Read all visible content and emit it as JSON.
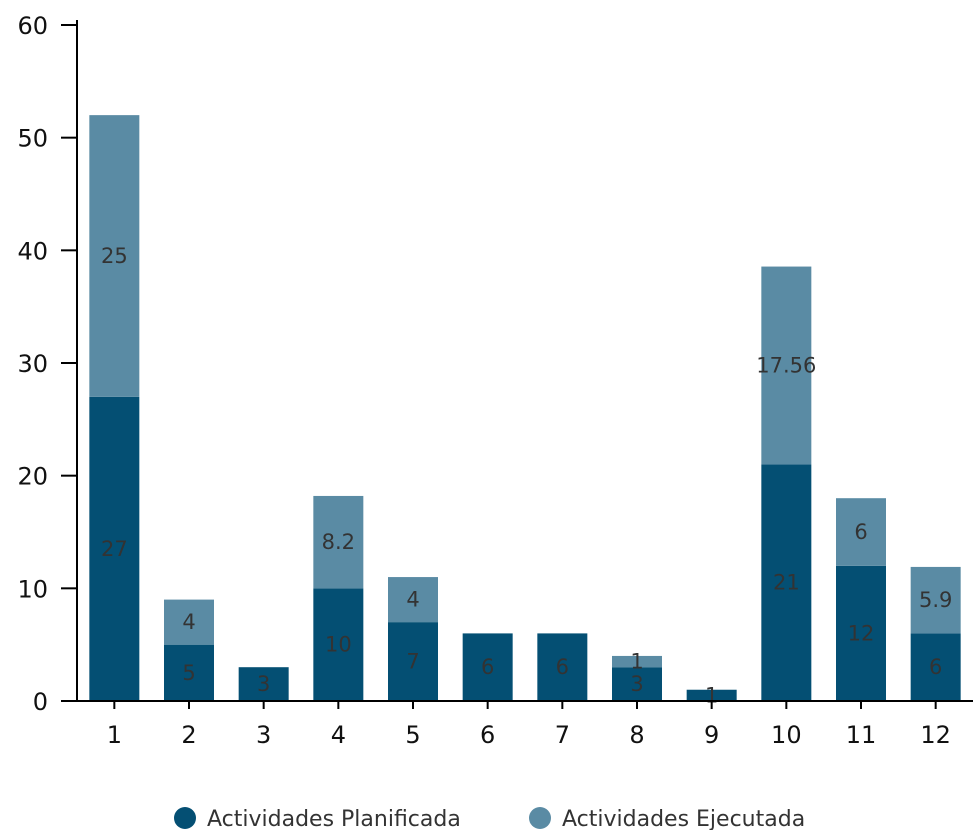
{
  "chart_data": {
    "type": "bar",
    "stacked": true,
    "categories": [
      "1",
      "2",
      "3",
      "4",
      "5",
      "6",
      "7",
      "8",
      "9",
      "10",
      "11",
      "12"
    ],
    "series": [
      {
        "name": "Actividades Planificada",
        "color": "#044F73",
        "values": [
          27,
          5,
          3,
          10,
          7,
          6,
          6,
          3,
          1,
          21,
          12,
          6
        ],
        "labels": [
          "27",
          "5",
          "3",
          "10",
          "7",
          "6",
          "6",
          "3",
          "1",
          "21",
          "12",
          "6"
        ]
      },
      {
        "name": "Actividades Ejecutada",
        "color": "#5A8BA4",
        "values": [
          25,
          4,
          0,
          8.2,
          4,
          0,
          0,
          1,
          0,
          17.56,
          6,
          5.9
        ],
        "labels": [
          "25",
          "4",
          "",
          "8.2",
          "4",
          "",
          "",
          "1",
          "",
          "17.56",
          "6",
          "5.9"
        ]
      }
    ],
    "ylim": [
      0,
      60
    ],
    "yticks": [
      0,
      10,
      20,
      30,
      40,
      50,
      60
    ],
    "grid": false,
    "legend": "bottom",
    "title": "",
    "xlabel": "",
    "ylabel": ""
  }
}
